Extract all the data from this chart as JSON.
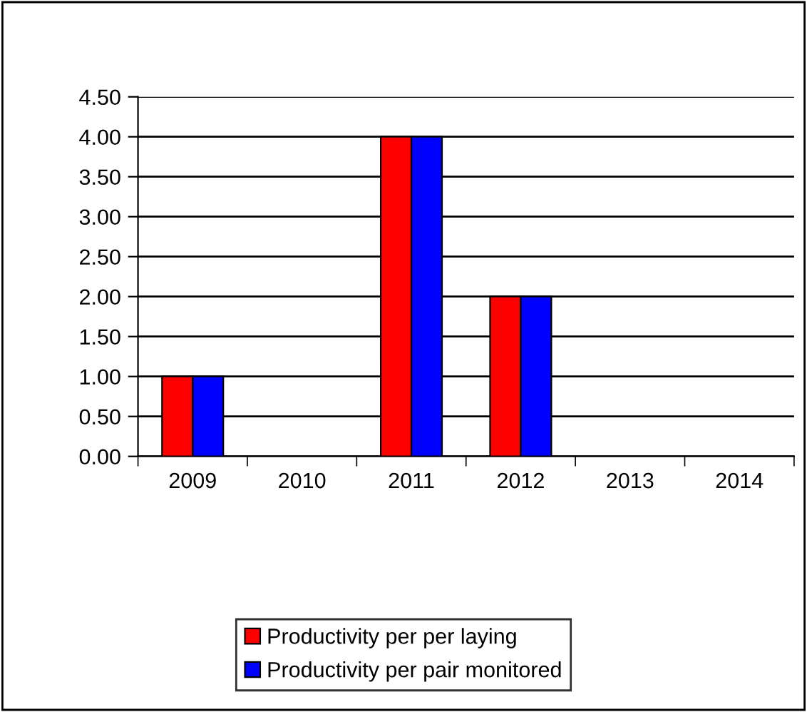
{
  "chart_data": {
    "type": "bar",
    "categories": [
      "2009",
      "2010",
      "2011",
      "2012",
      "2013",
      "2014"
    ],
    "series": [
      {
        "name": "Productivity per per laying",
        "color": "#ff0000",
        "values": [
          1,
          null,
          4,
          2,
          null,
          null
        ]
      },
      {
        "name": "Productivity per pair monitored",
        "color": "#0000ff",
        "values": [
          1,
          null,
          4,
          2,
          null,
          null
        ]
      }
    ],
    "ylim": [
      0,
      4.5
    ],
    "yticks": [
      {
        "value": 0,
        "label": "0.00"
      },
      {
        "value": 0.5,
        "label": "0.50"
      },
      {
        "value": 1,
        "label": "1.00"
      },
      {
        "value": 1.5,
        "label": "1.50"
      },
      {
        "value": 2,
        "label": "2.00"
      },
      {
        "value": 2.5,
        "label": "2.50"
      },
      {
        "value": 3,
        "label": "3.00"
      },
      {
        "value": 3.5,
        "label": "3.50"
      },
      {
        "value": 4,
        "label": "4.00"
      },
      {
        "value": 4.5,
        "label": "4.50"
      }
    ],
    "grid": "y",
    "legend": "bottom"
  }
}
